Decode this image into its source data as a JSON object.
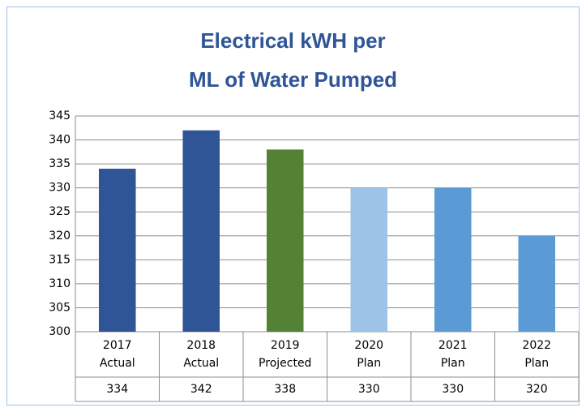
{
  "chart_data": {
    "type": "bar",
    "title": "Electrical kWH per ML of Water Pumped",
    "categories": [
      "2017 Actual",
      "2018 Actual",
      "2019 Projected",
      "2020 Plan",
      "2021 Plan",
      "2022 Plan"
    ],
    "values": [
      334,
      342,
      338,
      330,
      330,
      320
    ],
    "colors": [
      "#2f5597",
      "#2f5597",
      "#548235",
      "#9dc3e6",
      "#5b9bd5",
      "#5b9bd5"
    ],
    "ylim": [
      300,
      345
    ],
    "yticks": [
      300,
      305,
      310,
      315,
      320,
      325,
      330,
      335,
      340,
      345
    ],
    "grid": true,
    "data_table": true
  }
}
